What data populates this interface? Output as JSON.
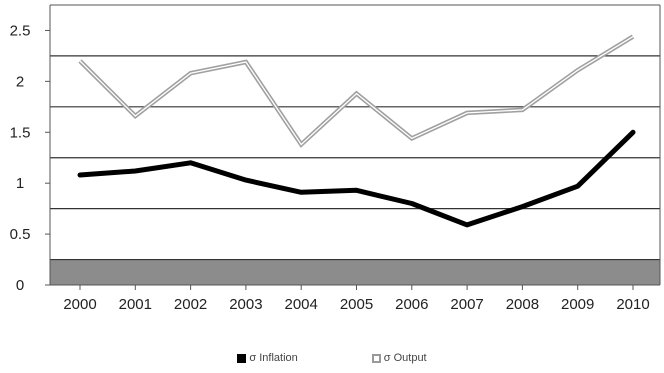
{
  "chart_data": {
    "type": "line",
    "title": "",
    "xlabel": "",
    "ylabel": "",
    "x": [
      "2000",
      "2001",
      "2002",
      "2003",
      "2004",
      "2005",
      "2006",
      "2007",
      "2008",
      "2009",
      "2010"
    ],
    "ylim": [
      0,
      2.75
    ],
    "yticks": [
      "0",
      "0.5",
      "1",
      "1.5",
      "2",
      "2.5"
    ],
    "grid": "horizontal lines at 0.25, 0.75, 1.25, 1.75, 2.25; band from 0 to 0.25 shaded gray",
    "legend_position": "bottom",
    "series": [
      {
        "name": "σ Inflation",
        "style": "solid",
        "color": "#000000",
        "values": [
          1.08,
          1.12,
          1.2,
          1.03,
          0.91,
          0.93,
          0.8,
          0.59,
          0.77,
          0.97,
          1.5
        ]
      },
      {
        "name": "σ Output",
        "style": "double",
        "color": "#a0a0a0",
        "values": [
          2.2,
          1.66,
          2.08,
          2.19,
          1.38,
          1.88,
          1.44,
          1.69,
          1.72,
          2.11,
          2.44
        ]
      }
    ]
  },
  "legend": {
    "inflation_label": "σ Inflation",
    "output_label": "σ Output"
  }
}
